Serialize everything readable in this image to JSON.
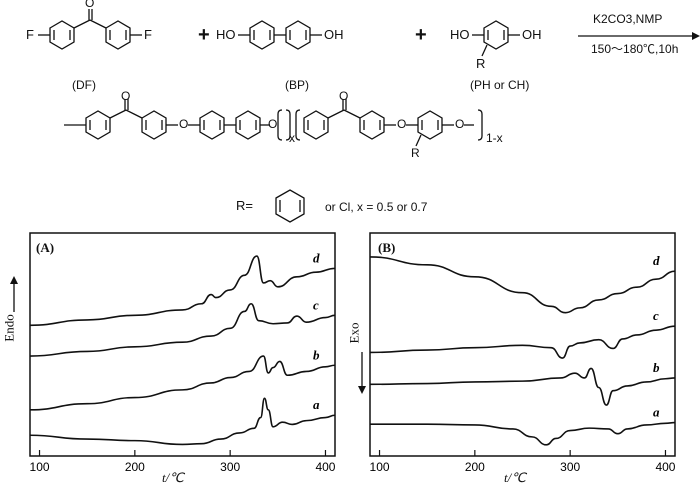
{
  "scheme": {
    "monomers": {
      "df": {
        "label": "(DF)",
        "left": "F",
        "right": "F",
        "carbonyl": "O"
      },
      "bp": {
        "label": "(BP)",
        "left": "HO",
        "right": "OH"
      },
      "ph": {
        "label": "(PH or CH)",
        "left": "HO",
        "right": "OH",
        "sub": "R"
      }
    },
    "plus": "+",
    "conditions_top": "K2CO3,NMP",
    "conditions_bottom": "150～180℃,10h",
    "polymer": {
      "o": "O",
      "x": "x",
      "sub_r": "R",
      "one_minus_x": "1-x"
    },
    "r_def_prefix": "R=",
    "r_def_suffix": "or Cl, x = 0.5 or 0.7"
  },
  "chart_data": [
    {
      "type": "line",
      "title": "(A)",
      "xlabel": "t/℃",
      "ylabel": "Endo",
      "xlim": [
        90,
        410
      ],
      "xticks": [
        100,
        200,
        300,
        400
      ],
      "series": [
        {
          "name": "a",
          "x": [
            90,
            150,
            200,
            250,
            270,
            290,
            310,
            325,
            332,
            336,
            340,
            345,
            355,
            365,
            380,
            400,
            410
          ],
          "y": [
            0.7,
            0.2,
            0.0,
            -0.5,
            -0.4,
            0.2,
            1.0,
            1.6,
            3.0,
            5.5,
            4.0,
            1.8,
            2.4,
            2.1,
            2.6,
            3.0,
            3.3
          ]
        },
        {
          "name": "b",
          "x": [
            90,
            150,
            200,
            250,
            280,
            300,
            320,
            335,
            340,
            345,
            352,
            360,
            380,
            400,
            410
          ],
          "y": [
            4.0,
            4.8,
            5.6,
            6.6,
            7.5,
            8.2,
            9.0,
            11.0,
            8.8,
            9.5,
            10.3,
            8.5,
            9.0,
            9.6,
            9.8
          ]
        },
        {
          "name": "c",
          "x": [
            90,
            150,
            200,
            250,
            280,
            300,
            315,
            322,
            330,
            345,
            360,
            370,
            380,
            400,
            410
          ],
          "y": [
            11.0,
            11.6,
            12.2,
            12.8,
            13.6,
            14.6,
            16.8,
            17.8,
            15.6,
            15.2,
            15.3,
            16.2,
            15.4,
            16.0,
            16.3
          ]
        },
        {
          "name": "d",
          "x": [
            90,
            150,
            200,
            250,
            270,
            280,
            285,
            300,
            315,
            328,
            335,
            342,
            350,
            370,
            390,
            410
          ],
          "y": [
            15.0,
            15.7,
            16.3,
            17.0,
            17.8,
            19.0,
            18.6,
            19.6,
            21.5,
            24.0,
            20.5,
            20.8,
            20.0,
            21.3,
            21.9,
            22.4
          ]
        }
      ]
    },
    {
      "type": "line",
      "title": "(B)",
      "xlabel": "t/℃",
      "ylabel": "Exo",
      "xlim": [
        90,
        410
      ],
      "xticks": [
        100,
        200,
        300,
        400
      ],
      "series": [
        {
          "name": "a",
          "x": [
            90,
            150,
            200,
            240,
            260,
            275,
            285,
            300,
            320,
            340,
            350,
            360,
            380,
            400,
            410
          ],
          "y": [
            3.0,
            3.0,
            2.9,
            2.4,
            1.4,
            0.4,
            1.2,
            2.2,
            2.5,
            2.4,
            1.8,
            2.4,
            2.9,
            3.1,
            3.2
          ]
        },
        {
          "name": "b",
          "x": [
            90,
            150,
            200,
            250,
            290,
            305,
            315,
            322,
            330,
            338,
            345,
            360,
            380,
            400,
            410
          ],
          "y": [
            8.0,
            8.1,
            8.3,
            8.4,
            8.8,
            9.4,
            8.8,
            10.0,
            7.6,
            5.4,
            7.2,
            7.8,
            8.3,
            8.7,
            8.8
          ]
        },
        {
          "name": "c",
          "x": [
            90,
            150,
            200,
            250,
            280,
            292,
            300,
            310,
            330,
            345,
            355,
            370,
            390,
            410
          ],
          "y": [
            12.0,
            12.3,
            12.6,
            12.9,
            12.6,
            11.3,
            12.8,
            13.2,
            13.6,
            12.5,
            13.7,
            14.2,
            14.8,
            15.3
          ]
        },
        {
          "name": "d",
          "x": [
            90,
            150,
            200,
            250,
            280,
            295,
            310,
            330,
            350,
            370,
            390,
            410
          ],
          "y": [
            24.0,
            23.0,
            21.5,
            19.5,
            17.8,
            17.0,
            17.6,
            18.6,
            19.4,
            20.2,
            21.2,
            22.2
          ]
        }
      ]
    }
  ]
}
